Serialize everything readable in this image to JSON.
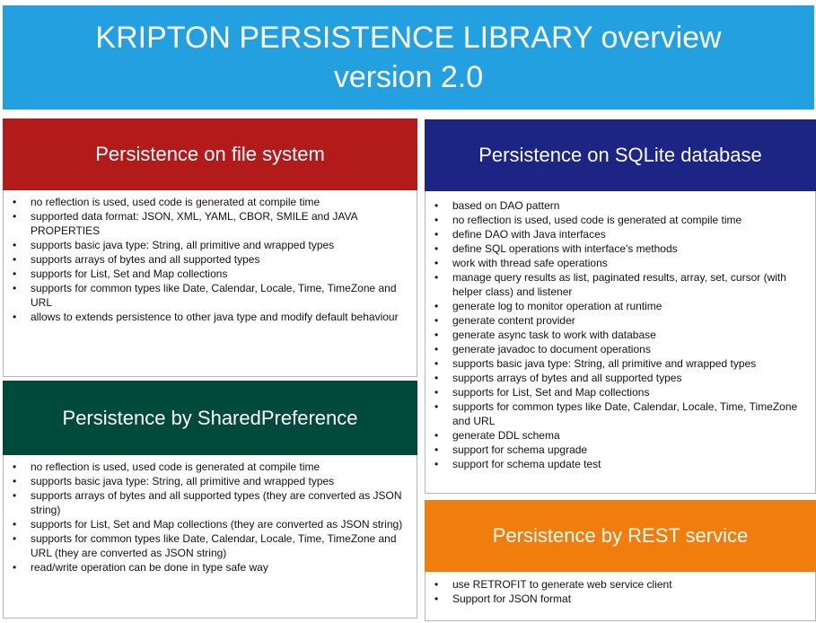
{
  "banner": {
    "line1": "KRIPTON PERSISTENCE LIBRARY overview",
    "line2": "version 2.0",
    "color": "#22a0e0"
  },
  "file_system": {
    "title": "Persistence on file system",
    "color": "#b31b1b",
    "items": [
      "no reflection is used, used code is generated at compile time",
      "supported data format: JSON, XML, YAML, CBOR, SMILE and JAVA PROPERTIES",
      "supports basic java type: String, all primitive and wrapped types",
      "supports arrays of bytes and all supported types",
      "supports for List, Set and Map collections",
      "supports for common types like Date, Calendar, Locale, Time, TimeZone and URL",
      "allows to extends persistence to other java type and modify default behaviour"
    ]
  },
  "shared_preference": {
    "title": "Persistence by SharedPreference",
    "color": "#004a3b",
    "items": [
      "no reflection is used, used code is generated at compile time",
      "supports basic java type: String, all primitive and wrapped types",
      "supports arrays of bytes and all supported types (they are converted as JSON string)",
      "supports for List, Set and Map collections (they are converted as JSON string)",
      "supports for common types like Date, Calendar, Locale, Time, TimeZone and URL (they are converted as JSON string)",
      "read/write operation can be done in type safe way"
    ]
  },
  "sqlite": {
    "title": "Persistence on SQLite database",
    "color": "#1c2583",
    "items": [
      "based on DAO pattern",
      "no reflection is used, used code is generated at compile time",
      "define DAO with Java interfaces",
      "define SQL operations with interface's methods",
      "work with thread safe operations",
      "manage query results as list, paginated results, array, set, cursor (with helper class) and listener",
      "generate log to monitor operation at runtime",
      "generate content provider",
      "generate async task to work with database",
      "generate javadoc to document operations",
      "supports basic java type: String, all primitive and wrapped types",
      "supports arrays of bytes and all supported types",
      "supports for List, Set and Map collections",
      "supports for common types like Date, Calendar, Locale, Time, TimeZone and URL",
      "generate DDL schema",
      "support for schema upgrade",
      "support for schema update test"
    ]
  },
  "rest": {
    "title": "Persistence by REST service",
    "color": "#f07d0c",
    "items": [
      "use RETROFIT to generate web service client",
      "Support for JSON format"
    ]
  }
}
